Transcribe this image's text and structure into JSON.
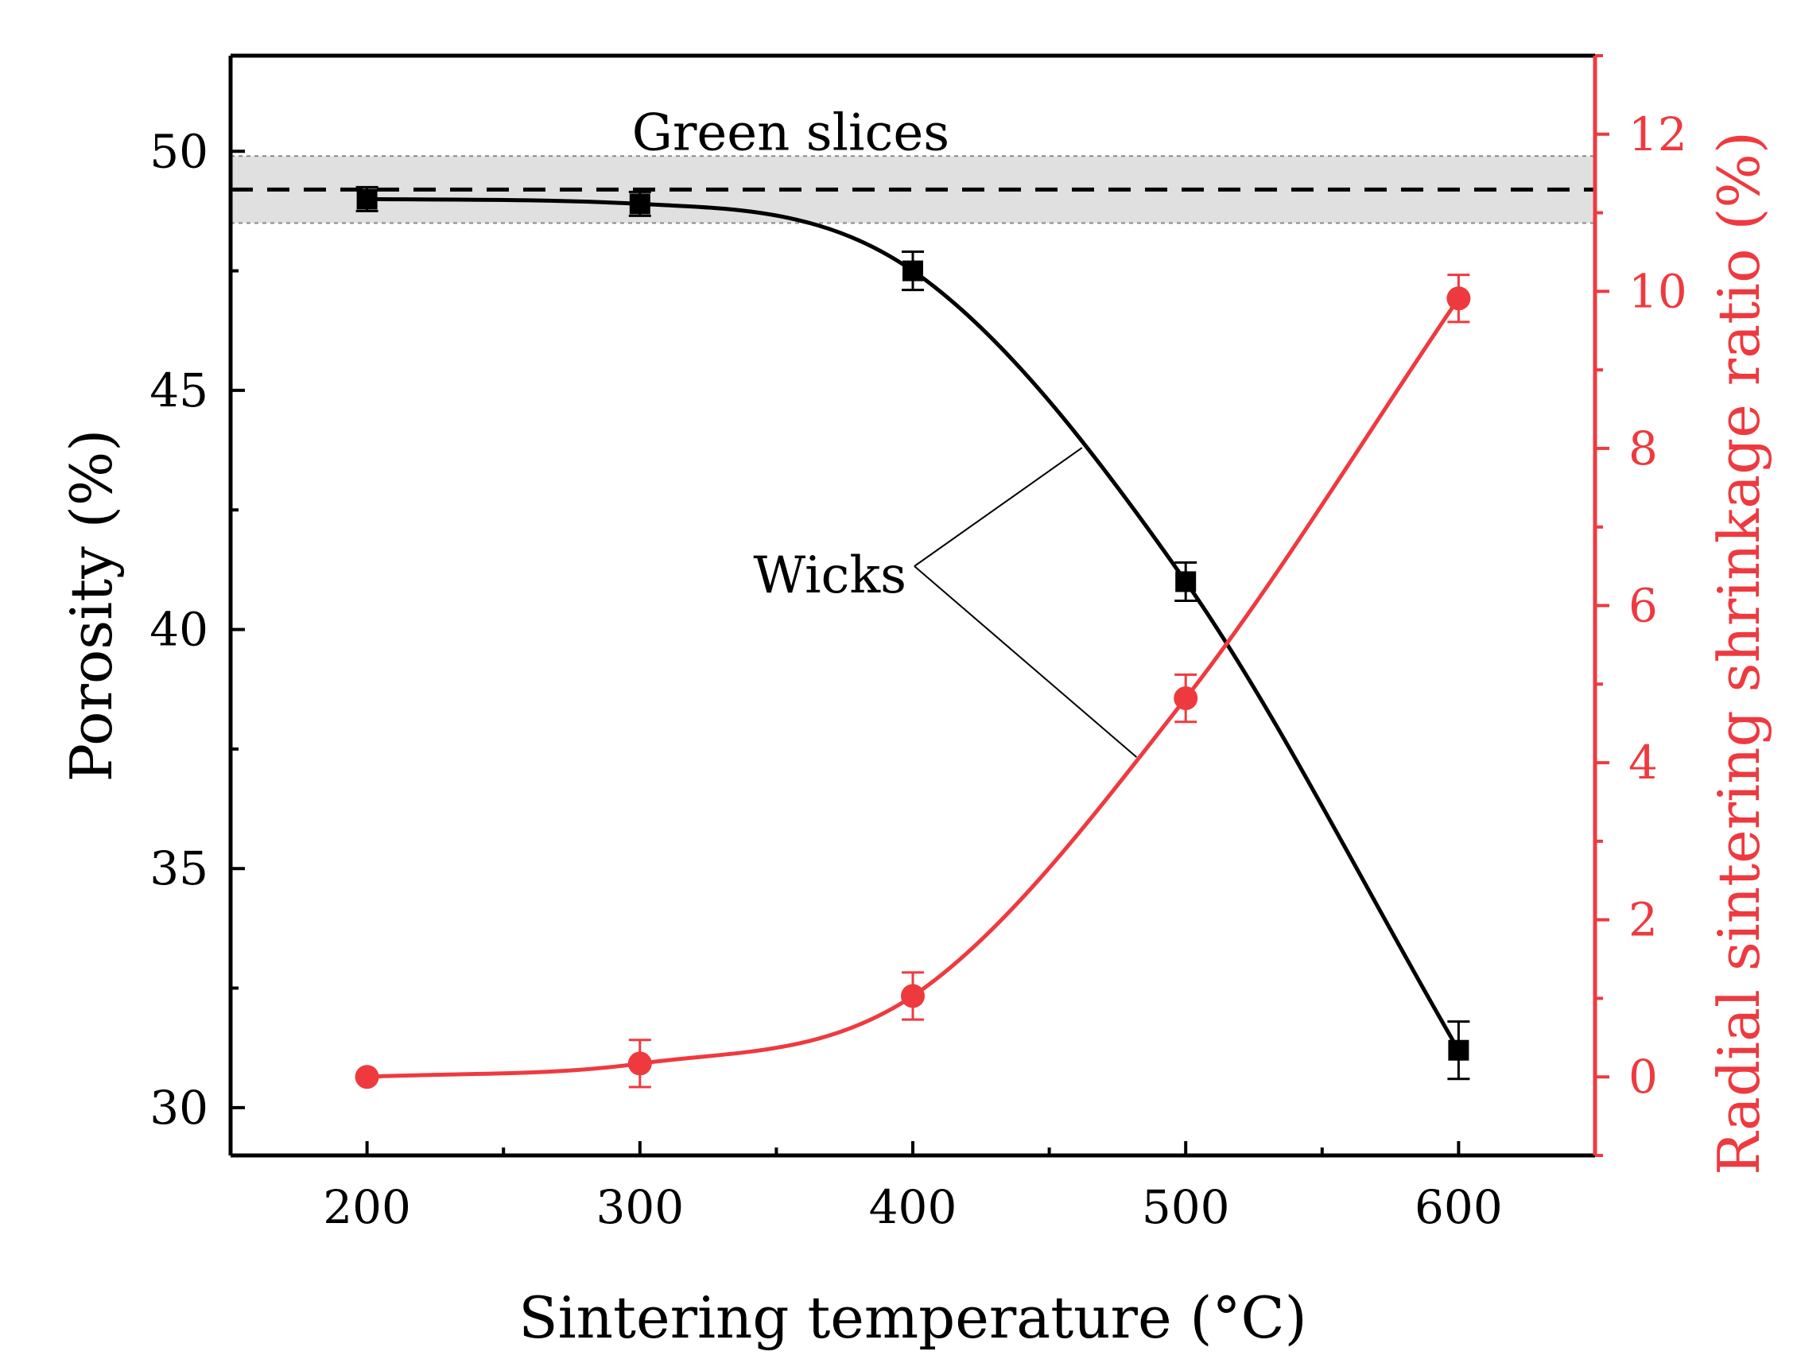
{
  "chart_data": {
    "type": "line",
    "title": "",
    "xlabel": "Sintering temperature (°C)",
    "ylabel": "Porosity (%)",
    "y2label": "Radial sintering shrinkage ratio (%)",
    "xlim": [
      150,
      650
    ],
    "ylim": [
      29,
      52
    ],
    "y2lim": [
      -1,
      13
    ],
    "x_ticks": [
      200,
      300,
      400,
      500,
      600
    ],
    "y_ticks": [
      30,
      35,
      40,
      45,
      50
    ],
    "y2_ticks": [
      0,
      2,
      4,
      6,
      8,
      10,
      12
    ],
    "x": [
      200,
      300,
      400,
      500,
      600
    ],
    "series": [
      {
        "name": "Porosity",
        "axis": "left",
        "color": "#000000",
        "marker": "square",
        "values": [
          49.0,
          48.9,
          47.5,
          41.0,
          31.2
        ],
        "errors": [
          0.25,
          0.25,
          0.4,
          0.4,
          0.6
        ]
      },
      {
        "name": "Radial sintering shrinkage ratio",
        "axis": "right",
        "color": "#ee3a3f",
        "marker": "circle",
        "values": [
          0.0,
          0.17,
          1.03,
          4.82,
          9.91
        ],
        "errors": [
          0.0,
          0.3,
          0.3,
          0.3,
          0.3
        ]
      }
    ],
    "reference_band": {
      "label": "Green slices",
      "value": 49.2,
      "lower": 48.5,
      "upper": 49.9,
      "band_color": "#e0e0e0"
    },
    "annotation": {
      "text": "Wicks"
    },
    "colors": {
      "axis_left": "#000000",
      "axis_right": "#ee3a3f"
    }
  }
}
